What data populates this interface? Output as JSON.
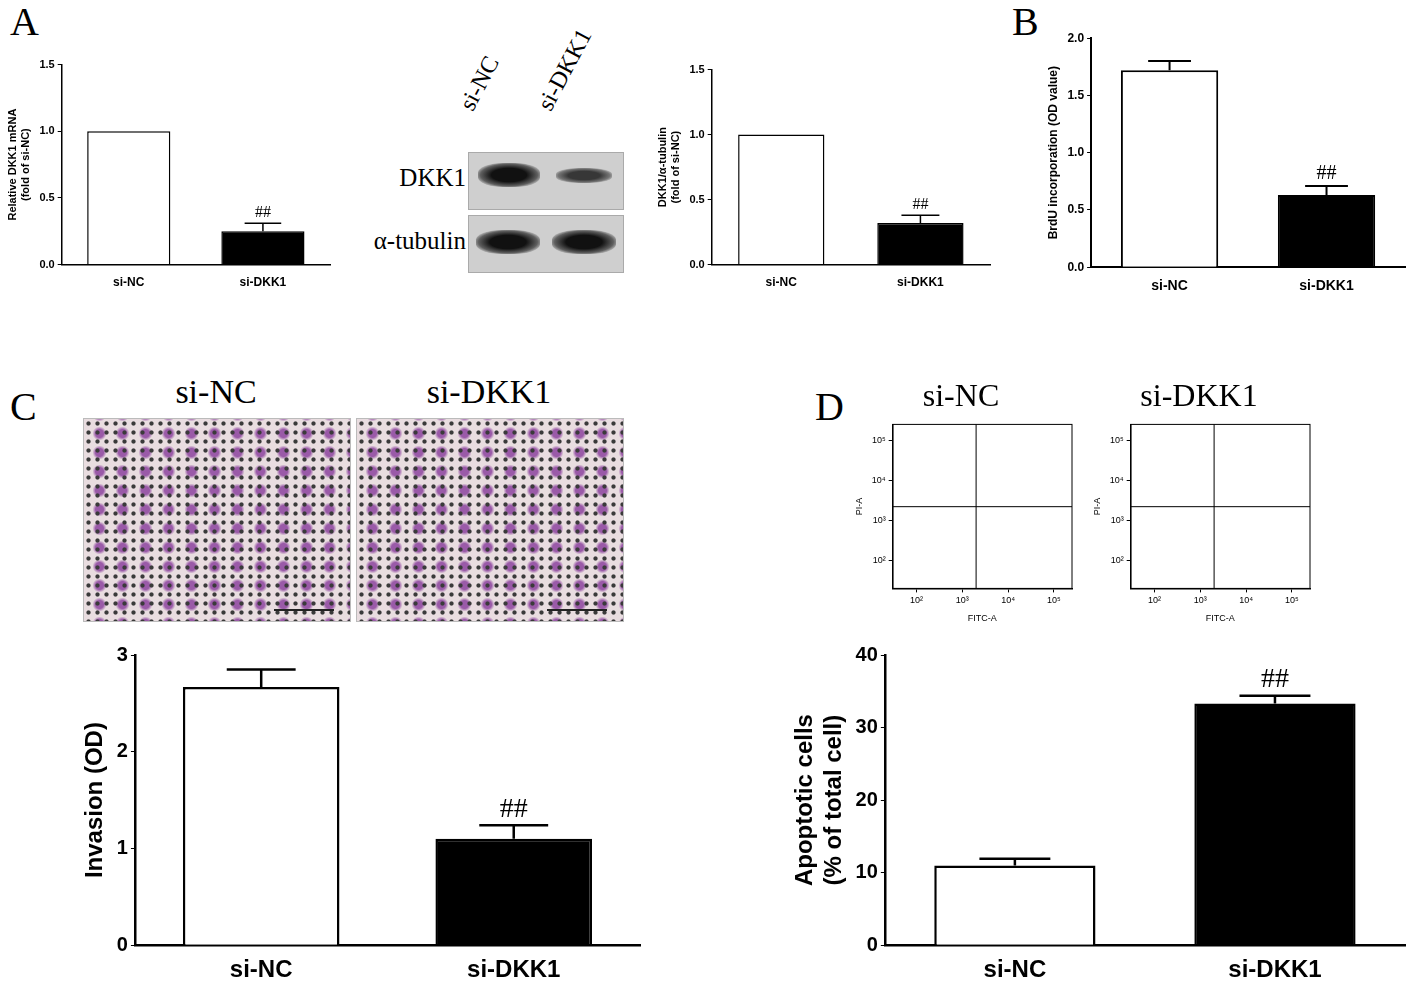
{
  "panels": [
    "A",
    "B",
    "C",
    "D"
  ],
  "blot": {
    "lanes": [
      "si-NC",
      "si-DKK1"
    ],
    "rows": [
      "DKK1",
      "α-tubulin"
    ]
  },
  "micrographs": {
    "titles": [
      "si-NC",
      "si-DKK1"
    ]
  },
  "chart_data": [
    {
      "type": "bar",
      "categories": [
        "si-NC",
        "si-DKK1"
      ],
      "values": [
        1.0,
        0.25
      ],
      "errors": [
        0,
        0.06
      ],
      "colors": [
        "#ffffff",
        "#000000"
      ],
      "ylabel": [
        "Relative DKK1 mRNA",
        "(fold of si-NC)"
      ],
      "ylim": [
        0,
        1.5
      ],
      "yticks": [
        {
          "value": 0,
          "label": "0.0"
        },
        {
          "value": 0.5,
          "label": "0.5"
        },
        {
          "value": 1,
          "label": "1.0"
        },
        {
          "value": 1.5,
          "label": "1.5"
        }
      ],
      "annotations": [
        {
          "category": "si-DKK1",
          "text": "##"
        }
      ],
      "grid": false
    },
    {
      "type": "bar",
      "categories": [
        "si-NC",
        "si-DKK1"
      ],
      "values": [
        1.0,
        0.32
      ],
      "errors": [
        0,
        0.06
      ],
      "colors": [
        "#ffffff",
        "#000000"
      ],
      "ylabel": [
        "DKK1/α-tubulin",
        "(fold of si-NC)"
      ],
      "ylim": [
        0,
        1.5
      ],
      "yticks": [
        {
          "value": 0,
          "label": "0.0"
        },
        {
          "value": 0.5,
          "label": "0.5"
        },
        {
          "value": 1,
          "label": "1.0"
        },
        {
          "value": 1.5,
          "label": "1.5"
        }
      ],
      "annotations": [
        {
          "category": "si-DKK1",
          "text": "##"
        }
      ],
      "grid": false
    },
    {
      "type": "bar",
      "categories": [
        "si-NC",
        "si-DKK1"
      ],
      "values": [
        1.72,
        0.63
      ],
      "errors": [
        0.08,
        0.08
      ],
      "colors": [
        "#ffffff",
        "#000000"
      ],
      "ylabel": "BrdU incorporation (OD value)",
      "ylim": [
        0,
        2
      ],
      "yticks": [
        {
          "value": 0,
          "label": "0.0"
        },
        {
          "value": 0.5,
          "label": "0.5"
        },
        {
          "value": 1,
          "label": "1.0"
        },
        {
          "value": 1.5,
          "label": "1.5"
        },
        {
          "value": 2,
          "label": "2.0"
        }
      ],
      "annotations": [
        {
          "category": "si-DKK1",
          "text": "##"
        }
      ],
      "grid": false
    },
    {
      "type": "bar",
      "categories": [
        "si-NC",
        "si-DKK1"
      ],
      "values": [
        2.67,
        1.1
      ],
      "errors": [
        0.18,
        0.14
      ],
      "colors": [
        "#ffffff",
        "#000000"
      ],
      "ylabel": "Invasion (OD)",
      "ylim": [
        0,
        3
      ],
      "yticks": [
        0,
        1,
        2,
        3
      ],
      "annotations": [
        {
          "category": "si-DKK1",
          "text": "##"
        }
      ],
      "grid": false
    },
    {
      "type": "scatter",
      "title": "si-NC",
      "xlabel": "FITC-A",
      "ylabel": "PI-A",
      "log": true,
      "xlim": [
        30,
        250000
      ],
      "ylim": [
        20,
        250000
      ],
      "xticks": [
        {
          "value": 100,
          "label": "10²"
        },
        {
          "value": 1000,
          "label": "10³"
        },
        {
          "value": 10000,
          "label": "10⁴"
        },
        {
          "value": 100000,
          "label": "10⁵"
        }
      ],
      "yticks": [
        {
          "value": 100,
          "label": "10²"
        },
        {
          "value": 1000,
          "label": "10³"
        },
        {
          "value": 10000,
          "label": "10⁴"
        },
        {
          "value": 100000,
          "label": "10⁵"
        }
      ],
      "quadrant": {
        "x": 2000,
        "y": 2200
      },
      "grid": false
    },
    {
      "type": "scatter",
      "title": "si-DKK1",
      "xlabel": "FITC-A",
      "ylabel": "PI-A",
      "log": true,
      "xlim": [
        30,
        250000
      ],
      "ylim": [
        20,
        250000
      ],
      "xticks": [
        {
          "value": 100,
          "label": "10²"
        },
        {
          "value": 1000,
          "label": "10³"
        },
        {
          "value": 10000,
          "label": "10⁴"
        },
        {
          "value": 100000,
          "label": "10⁵"
        }
      ],
      "yticks": [
        {
          "value": 100,
          "label": "10²"
        },
        {
          "value": 1000,
          "label": "10³"
        },
        {
          "value": 10000,
          "label": "10⁴"
        },
        {
          "value": 100000,
          "label": "10⁵"
        }
      ],
      "quadrant": {
        "x": 2000,
        "y": 2200
      },
      "grid": false
    },
    {
      "type": "bar",
      "categories": [
        "si-NC",
        "si-DKK1"
      ],
      "values": [
        11,
        33.3
      ],
      "errors": [
        0.9,
        1.1
      ],
      "colors": [
        "#ffffff",
        "#000000"
      ],
      "ylabel": [
        "Apoptotic cells",
        "(% of total cell)"
      ],
      "ylim": [
        0,
        40
      ],
      "yticks": [
        0,
        10,
        20,
        30,
        40
      ],
      "annotations": [
        {
          "category": "si-DKK1",
          "text": "##"
        }
      ],
      "grid": false
    }
  ]
}
